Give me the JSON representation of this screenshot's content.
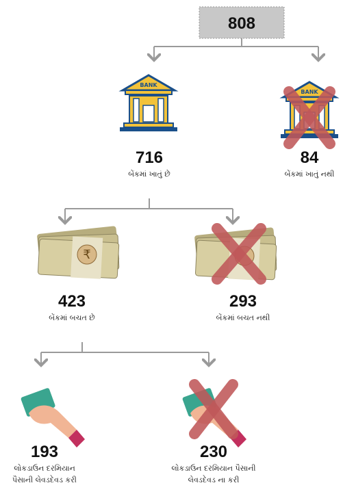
{
  "root": {
    "value": "808"
  },
  "icon_text": {
    "bank": "BANK",
    "currency": "₹"
  },
  "nodes": [
    {
      "value": "716",
      "label_lines": [
        "બેંકમાં ખાતું છે"
      ]
    },
    {
      "value": "84",
      "label_lines": [
        "બેંકમાં ખાતું નથી"
      ]
    },
    {
      "value": "423",
      "label_lines": [
        "બેંકમાં બચત છે"
      ]
    },
    {
      "value": "293",
      "label_lines": [
        "બેંકમાં બચત નથી"
      ]
    },
    {
      "value": "193",
      "label_lines": [
        "લોકડાઉન દરમિયાન",
        "પૈસાની લેવડદેવડ કરી"
      ]
    },
    {
      "value": "230",
      "label_lines": [
        "લોકડાઉન દરમિયાન પૈસાની",
        "લેવડદેવડ ના કરી"
      ]
    }
  ]
}
